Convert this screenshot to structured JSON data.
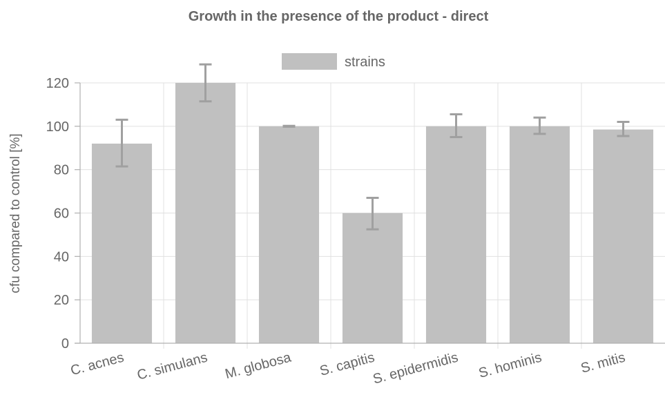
{
  "chart_data": {
    "type": "bar",
    "title": "Growth in the presence of the product - direct",
    "ylabel": "cfu compared to control [%]",
    "xlabel": "",
    "ylim": [
      0,
      120
    ],
    "yticks": [
      0,
      20,
      40,
      60,
      80,
      100,
      120
    ],
    "grid": true,
    "legend_position": "top",
    "categories": [
      "C. acnes",
      "C. simulans",
      "M. globosa",
      "S. capitis",
      "S. epidermidis",
      "S. hominis",
      "S. mitis"
    ],
    "series": [
      {
        "name": "strains",
        "color": "#c0c0c0",
        "values": [
          92,
          120,
          100,
          60,
          100,
          100,
          98.5
        ],
        "error_low": [
          81.5,
          111.5,
          99.8,
          52.5,
          95,
          96.5,
          95.5
        ],
        "error_high": [
          103,
          128.5,
          100.2,
          67,
          105.5,
          104,
          102
        ]
      }
    ]
  }
}
